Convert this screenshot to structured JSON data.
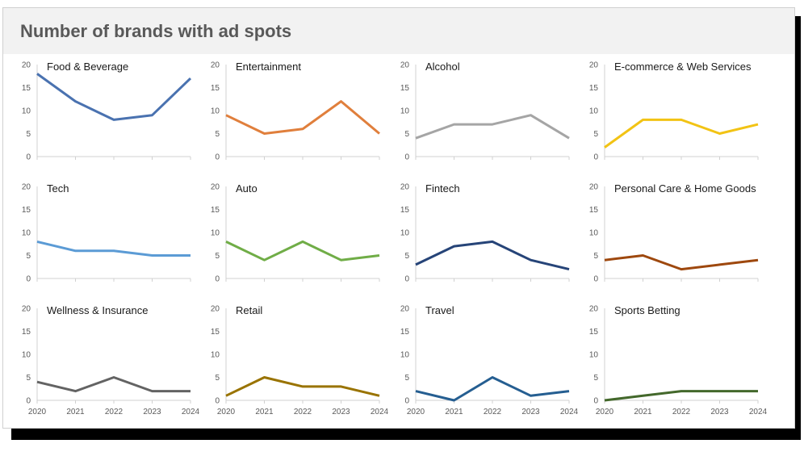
{
  "title": "Number of brands with ad spots",
  "chart_data": {
    "type": "line",
    "x": [
      "2020",
      "2021",
      "2022",
      "2023",
      "2024"
    ],
    "ylim": [
      0,
      20
    ],
    "yticks": [
      "0",
      "5",
      "10",
      "15",
      "20"
    ],
    "grid": false,
    "panels": [
      {
        "title": "Food & Beverage",
        "color": "#4a72b0",
        "values": [
          18,
          12,
          8,
          9,
          17
        ]
      },
      {
        "title": "Entertainment",
        "color": "#e07f3c",
        "values": [
          9,
          5,
          6,
          12,
          5
        ]
      },
      {
        "title": "Alcohol",
        "color": "#a5a5a5",
        "values": [
          4,
          7,
          7,
          9,
          4
        ]
      },
      {
        "title": "E-commerce & Web Services",
        "color": "#f2c314",
        "values": [
          2,
          8,
          8,
          5,
          7
        ]
      },
      {
        "title": "Tech",
        "color": "#5b9bd5",
        "values": [
          8,
          6,
          6,
          5,
          5
        ]
      },
      {
        "title": "Auto",
        "color": "#70ad47",
        "values": [
          8,
          4,
          8,
          4,
          5
        ]
      },
      {
        "title": "Fintech",
        "color": "#264478",
        "values": [
          3,
          7,
          8,
          4,
          2
        ]
      },
      {
        "title": "Personal Care & Home Goods",
        "color": "#9e480e",
        "values": [
          4,
          5,
          2,
          3,
          4
        ]
      },
      {
        "title": "Wellness & Insurance",
        "color": "#636363",
        "values": [
          4,
          2,
          5,
          2,
          2
        ]
      },
      {
        "title": "Retail",
        "color": "#997300",
        "values": [
          1,
          5,
          3,
          3,
          1
        ]
      },
      {
        "title": "Travel",
        "color": "#255e91",
        "values": [
          2,
          0,
          5,
          1,
          2
        ]
      },
      {
        "title": "Sports Betting",
        "color": "#43682b",
        "values": [
          0,
          1,
          2,
          2,
          2
        ]
      }
    ]
  }
}
